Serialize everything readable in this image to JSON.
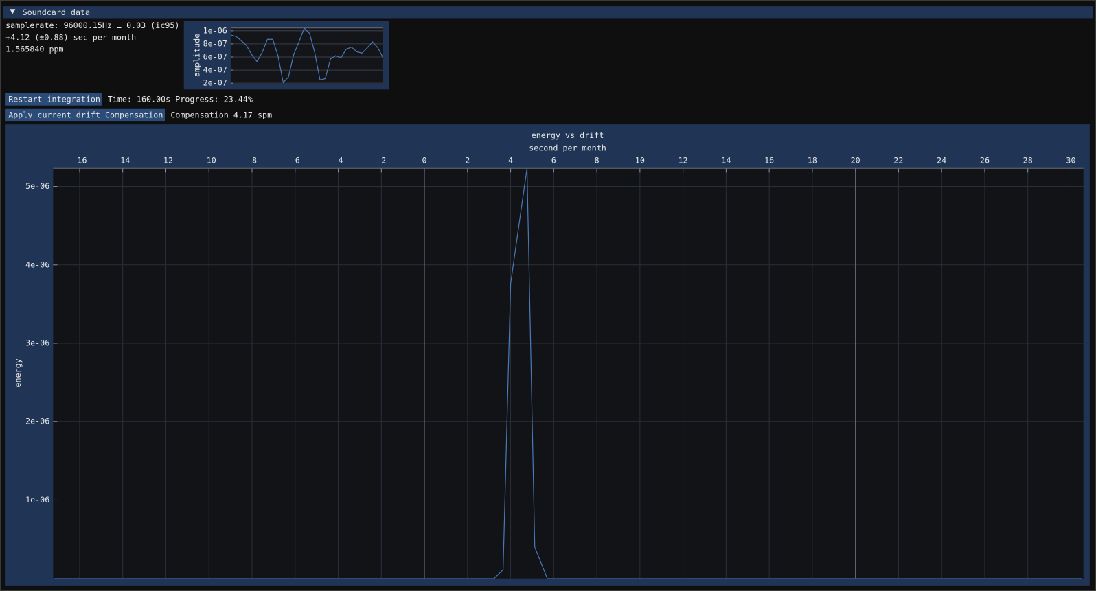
{
  "window": {
    "title": "Soundcard data"
  },
  "info": [
    "samplerate: 96000.15Hz ± 0.03 (ic95)",
    "+4.12 (±0.88) sec per month",
    "1.565840 ppm"
  ],
  "buttons": [
    {
      "label": "Restart integration",
      "status": "Time: 160.00s Progress: 23.44%"
    },
    {
      "label": "Apply current drift Compensation",
      "status": "Compensation 4.17 spm"
    }
  ],
  "chart_data": [
    {
      "type": "line",
      "ylabel": "amplitude",
      "ylim": [
        1.9e-07,
        1.043e-06
      ],
      "yticks": [
        {
          "value": 1e-06,
          "label": "1e-06"
        },
        {
          "value": 8e-07,
          "label": "8e-07"
        },
        {
          "value": 6e-07,
          "label": "6e-07"
        },
        {
          "value": 4e-07,
          "label": "4e-07"
        },
        {
          "value": 2e-07,
          "label": "2e-07"
        }
      ],
      "grid": true,
      "color": "#4a78b8",
      "values": [
        9.36e-07,
        9.15e-07,
        8.5e-07,
        7.76e-07,
        6.37e-07,
        5.3e-07,
        6.7e-07,
        8.7e-07,
        8.7e-07,
        6.2e-07,
        2.1e-07,
        2.96e-07,
        6.4e-07,
        8.3e-07,
        1.04e-06,
        9.6e-07,
        6.7e-07,
        2.5e-07,
        2.7e-07,
        5.7e-07,
        6.2e-07,
        5.9e-07,
        7.2e-07,
        7.5e-07,
        6.8e-07,
        6.6e-07,
        7.4e-07,
        8.3e-07,
        7.4e-07,
        5.9e-07
      ]
    },
    {
      "type": "line",
      "title": "energy vs drift",
      "xlabel": "second per month",
      "ylabel": "energy",
      "xlim": [
        -17.23,
        30.58
      ],
      "xticks": [
        -16,
        -14,
        -12,
        -10,
        -8,
        -6,
        -4,
        -2,
        0,
        2,
        4,
        6,
        8,
        10,
        12,
        14,
        16,
        18,
        20,
        22,
        24,
        26,
        28,
        30
      ],
      "ylim": [
        0,
        5.23e-06
      ],
      "yticks": [
        {
          "value": 1e-06,
          "label": "1e-06"
        },
        {
          "value": 2e-06,
          "label": "2e-06"
        },
        {
          "value": 3e-06,
          "label": "3e-06"
        },
        {
          "value": 4e-06,
          "label": "4e-06"
        },
        {
          "value": 5e-06,
          "label": "5e-06"
        }
      ],
      "grid": true,
      "vlines": [
        0,
        20
      ],
      "color": "#4a78b8",
      "x": [
        -17.2,
        3.23,
        3.65,
        4.0,
        4.76,
        5.12,
        5.7,
        30.5
      ],
      "values": [
        0,
        0,
        1.1e-07,
        3.76e-06,
        5.23e-06,
        4e-07,
        0,
        0
      ]
    }
  ]
}
